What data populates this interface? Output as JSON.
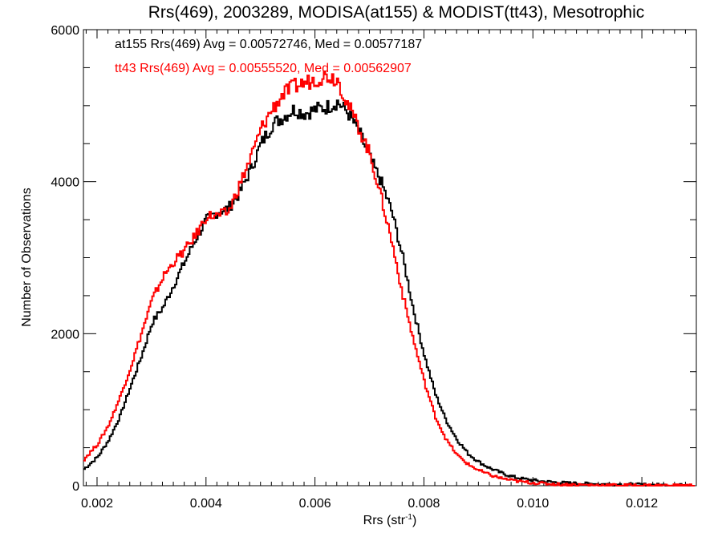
{
  "chart_data": {
    "type": "line",
    "title": "Rrs(469), 2003289, MODISA(at155) & MODIST(tt43), Mesotrophic",
    "xlabel_main": "Rrs (str",
    "xlabel_sup": "-1",
    "xlabel_close": ")",
    "ylabel": "Number of Observations",
    "xlim": [
      0.00175,
      0.013
    ],
    "ylim": [
      0,
      6000
    ],
    "x_ticks": [
      0.002,
      0.004,
      0.006,
      0.008,
      0.01,
      0.012
    ],
    "x_tick_labels": [
      "0.002",
      "0.004",
      "0.006",
      "0.008",
      "0.010",
      "0.012"
    ],
    "y_ticks": [
      0,
      2000,
      4000,
      6000
    ],
    "y_tick_labels": [
      "0",
      "2000",
      "4000",
      "6000"
    ],
    "grid": false,
    "legend_position": "top-left",
    "series": [
      {
        "name": "at155",
        "legend_text": "at155 Rrs(469) Avg = 0.00572746, Med = 0.00577187",
        "color": "#000000",
        "x": [
          0.00175,
          0.002,
          0.0022,
          0.0024,
          0.0026,
          0.0028,
          0.003,
          0.0032,
          0.0034,
          0.0036,
          0.0038,
          0.004,
          0.0042,
          0.0044,
          0.0046,
          0.0048,
          0.005,
          0.0052,
          0.0054,
          0.0056,
          0.0058,
          0.006,
          0.0062,
          0.0064,
          0.0066,
          0.0068,
          0.007,
          0.0072,
          0.0074,
          0.0076,
          0.0078,
          0.008,
          0.0082,
          0.0084,
          0.0086,
          0.0088,
          0.009,
          0.0092,
          0.0094,
          0.0096,
          0.0098,
          0.01,
          0.0102,
          0.0104,
          0.0106,
          0.011,
          0.0115,
          0.012,
          0.0125,
          0.013
        ],
        "y": [
          220,
          380,
          600,
          900,
          1300,
          1700,
          2150,
          2350,
          2650,
          2950,
          3250,
          3500,
          3600,
          3650,
          3850,
          4150,
          4500,
          4750,
          4850,
          4950,
          4900,
          4950,
          4980,
          5050,
          4900,
          4650,
          4300,
          4000,
          3600,
          3000,
          2300,
          1700,
          1200,
          850,
          600,
          420,
          310,
          230,
          170,
          120,
          90,
          70,
          55,
          45,
          35,
          25,
          18,
          12,
          8,
          5
        ]
      },
      {
        "name": "tt43",
        "legend_text": "tt43 Rrs(469) Avg = 0.00555520, Med = 0.00562907",
        "color": "#ff0000",
        "x": [
          0.00175,
          0.002,
          0.0022,
          0.0024,
          0.0026,
          0.0028,
          0.003,
          0.0032,
          0.0034,
          0.0036,
          0.0038,
          0.004,
          0.0042,
          0.0044,
          0.0046,
          0.0048,
          0.005,
          0.0052,
          0.0054,
          0.0056,
          0.0058,
          0.006,
          0.0062,
          0.0064,
          0.0066,
          0.0068,
          0.007,
          0.0072,
          0.0074,
          0.0076,
          0.0078,
          0.008,
          0.0082,
          0.0084,
          0.0086,
          0.0088,
          0.009,
          0.0092,
          0.0094,
          0.0096,
          0.0098,
          0.01,
          0.0102,
          0.0104,
          0.0106,
          0.011,
          0.0115,
          0.012,
          0.0125,
          0.013
        ],
        "y": [
          350,
          550,
          800,
          1150,
          1550,
          2000,
          2450,
          2750,
          2950,
          3100,
          3300,
          3550,
          3550,
          3600,
          3950,
          4300,
          4700,
          4950,
          5150,
          5250,
          5300,
          5350,
          5400,
          5350,
          5000,
          4700,
          4350,
          3800,
          3200,
          2500,
          1900,
          1350,
          900,
          600,
          400,
          280,
          200,
          140,
          100,
          70,
          50,
          38,
          28,
          20,
          14,
          9,
          6,
          4,
          3,
          2
        ]
      }
    ]
  }
}
